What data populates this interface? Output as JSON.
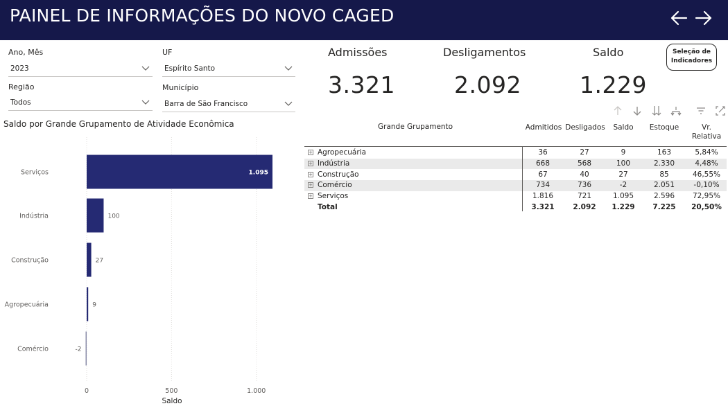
{
  "header": {
    "title": "PAINEL DE INFORMAÇÕES DO NOVO CAGED",
    "back_icon": "arrow-left-icon",
    "forward_icon": "arrow-right-icon"
  },
  "filters": {
    "ano_mes": {
      "label": "Ano, Mês",
      "value": "2023"
    },
    "uf": {
      "label": "UF",
      "value": "Espírito Santo"
    },
    "regiao": {
      "label": "Região",
      "value": "Todos"
    },
    "municipio": {
      "label": "Município",
      "value": "Barra de São Francisco"
    }
  },
  "kpis": {
    "admissoes": {
      "label": "Admissões",
      "value": "3.321"
    },
    "desligamentos": {
      "label": "Desligamentos",
      "value": "2.092"
    },
    "saldo": {
      "label": "Saldo",
      "value": "1.229"
    }
  },
  "selection_button": {
    "line1": "Seleção de",
    "line2": "Indicadores"
  },
  "table": {
    "headers": {
      "grupo": "Grande Grupamento",
      "admitidos": "Admitidos",
      "desligados": "Desligados",
      "saldo": "Saldo",
      "estoque": "Estoque",
      "vr1": "Vr.",
      "vr2": "Relativa"
    },
    "rows": [
      {
        "name": "Agropecuária",
        "admitidos": "36",
        "desligados": "27",
        "saldo": "9",
        "estoque": "163",
        "vr": "5,84%"
      },
      {
        "name": "Indústria",
        "admitidos": "668",
        "desligados": "568",
        "saldo": "100",
        "estoque": "2.330",
        "vr": "4,48%"
      },
      {
        "name": "Construção",
        "admitidos": "67",
        "desligados": "40",
        "saldo": "27",
        "estoque": "85",
        "vr": "46,55%"
      },
      {
        "name": "Comércio",
        "admitidos": "734",
        "desligados": "736",
        "saldo": "-2",
        "estoque": "2.051",
        "vr": "-0,10%"
      },
      {
        "name": "Serviços",
        "admitidos": "1.816",
        "desligados": "721",
        "saldo": "1.095",
        "estoque": "2.596",
        "vr": "72,95%"
      }
    ],
    "total": {
      "name": "Total",
      "admitidos": "3.321",
      "desligados": "2.092",
      "saldo": "1.229",
      "estoque": "7.225",
      "vr": "20,50%"
    }
  },
  "chart_data": {
    "type": "bar",
    "orientation": "horizontal",
    "title": "Saldo por Grande Grupamento de Atividade Econômica",
    "xlabel": "Saldo",
    "ylabel": "",
    "categories": [
      "Serviços",
      "Indústria",
      "Construção",
      "Agropecuária",
      "Comércio"
    ],
    "values": [
      1095,
      100,
      27,
      9,
      -2
    ],
    "value_labels": [
      "1.095",
      "100",
      "27",
      "9",
      "-2"
    ],
    "xlim": [
      0,
      1095
    ],
    "xticks": [
      0,
      500,
      1000
    ],
    "xtick_labels": [
      "0",
      "500",
      "1.000"
    ],
    "bar_color": "#252a73",
    "grid": true
  }
}
